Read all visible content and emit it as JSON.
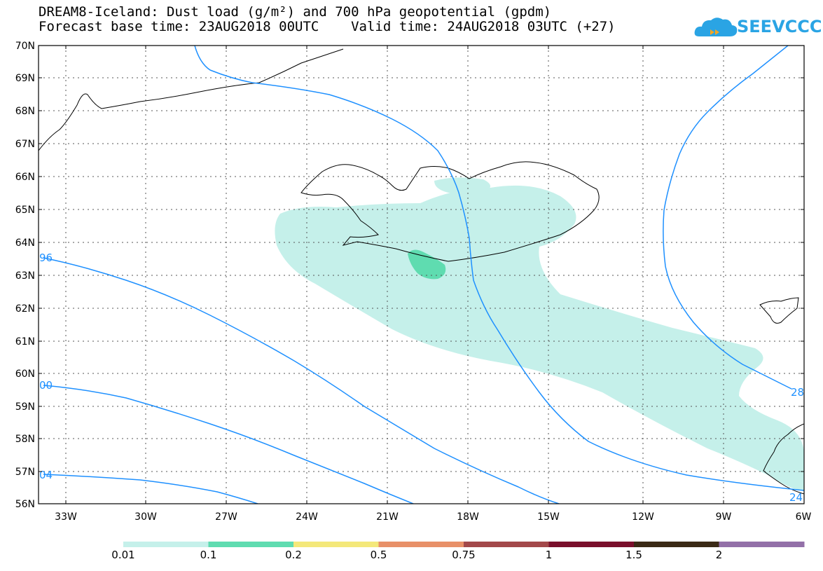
{
  "title": {
    "line1": "DREAM8-Iceland: Dust load (g/m²) and 700 hPa geopotential (gpdm)",
    "line2": "Forecast base time: 23AUG2018 00UTC    Valid time: 24AUG2018 03UTC (+27)"
  },
  "logo": {
    "text": "SEEVCCC",
    "icon": "cloud-logo-icon",
    "color": "#2aa4e4"
  },
  "map": {
    "lat_labels": [
      "70N",
      "69N",
      "68N",
      "67N",
      "66N",
      "65N",
      "64N",
      "63N",
      "62N",
      "61N",
      "60N",
      "59N",
      "58N",
      "57N",
      "56N"
    ],
    "lon_labels": [
      "33W",
      "30W",
      "27W",
      "24W",
      "21W",
      "18W",
      "15W",
      "12W",
      "9W",
      "6W"
    ],
    "contour_labels": [
      {
        "text": "96"
      },
      {
        "text": "00"
      },
      {
        "text": "04"
      },
      {
        "text": "28"
      },
      {
        "text": "24"
      }
    ],
    "contour_color": "#1e90ff"
  },
  "colorbar": {
    "labels": [
      "0.01",
      "0.1",
      "0.2",
      "0.5",
      "0.75",
      "1",
      "1.5",
      "2"
    ],
    "colors": [
      "#c5f0ea",
      "#5fdcb0",
      "#f4e87a",
      "#e89068",
      "#a3484a",
      "#7a0f2c",
      "#3b2a16",
      "#9370a8"
    ]
  }
}
